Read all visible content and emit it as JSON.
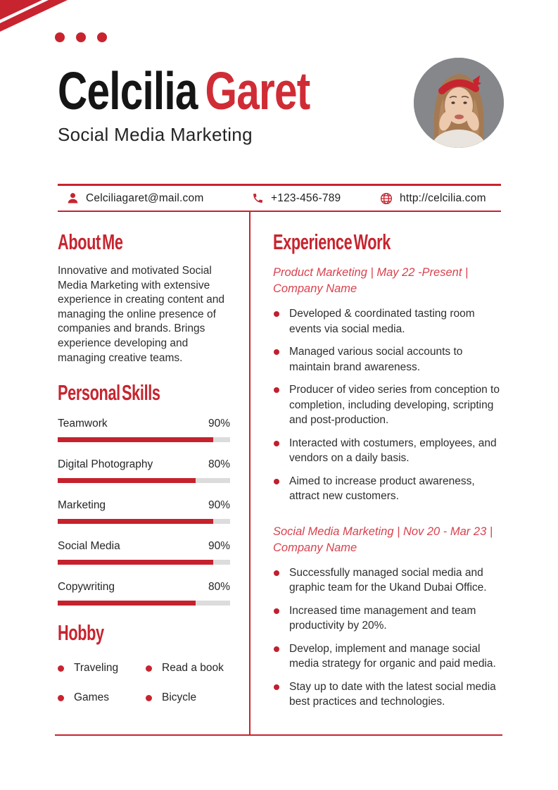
{
  "colors": {
    "accent": "#C7242F",
    "name_red": "#D02C35",
    "job_title_red": "#D9424E",
    "bar_fill": "#C5222D",
    "bar_track": "#DCDCDC",
    "text_dark": "#2E2E2E",
    "photo_bg": "#85878B"
  },
  "header": {
    "name_first": "Celcilia",
    "name_last": "Garet",
    "subtitle": "Social Media Marketing"
  },
  "contact": {
    "email": {
      "icon": "person-icon",
      "text": "Celciliagaret@mail.com"
    },
    "phone": {
      "icon": "phone-icon",
      "text": "+123-456-789"
    },
    "website": {
      "icon": "globe-icon",
      "text": "http://celcilia.com"
    }
  },
  "about": {
    "title": "About Me",
    "text": "Innovative and motivated Social Media Marketing with extensive experience in creating content and managing the online presence of companies and brands. Brings experience developing and managing creative teams."
  },
  "skills": {
    "title": "Personal Skills",
    "items": [
      {
        "label": "Teamwork",
        "percent": "90%",
        "value": 90
      },
      {
        "label": "Digital Photography",
        "percent": "80%",
        "value": 80
      },
      {
        "label": "Marketing",
        "percent": "90%",
        "value": 90
      },
      {
        "label": "Social Media",
        "percent": "90%",
        "value": 90
      },
      {
        "label": "Copywriting",
        "percent": "80%",
        "value": 80
      }
    ]
  },
  "hobby": {
    "title": "Hobby",
    "items": [
      "Traveling",
      "Read a book",
      "Games",
      "Bicycle"
    ]
  },
  "experience": {
    "title": "Experience Work",
    "jobs": [
      {
        "title": "Product Marketing | May 22 -Present | Company Name",
        "bullets": [
          "Developed & coordinated tasting room events via social media.",
          "Managed various social accounts to maintain brand awareness.",
          "Producer of video series from conception to completion, including developing, scripting and post-production.",
          "Interacted with costumers, employees, and vendors on a daily basis.",
          "Aimed to increase product awareness, attract new customers."
        ]
      },
      {
        "title": "Social Media Marketing | Nov 20 - Mar 23 | Company Name",
        "bullets": [
          "Successfully managed social media and graphic team for the Ukand Dubai Office.",
          "Increased time management and team productivity by 20%.",
          "Develop, implement and manage social media strategy for organic and paid media.",
          "Stay up to date with the latest social media best practices and technologies."
        ]
      }
    ]
  }
}
